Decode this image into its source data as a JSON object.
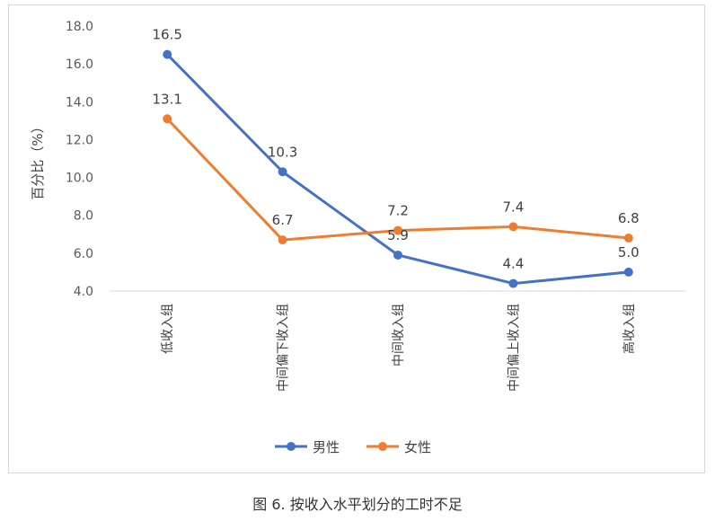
{
  "chart_data": {
    "type": "line",
    "ylabel": "百分比（%）",
    "ylim": [
      4.0,
      18.0
    ],
    "yticks": [
      "4.0",
      "6.0",
      "8.0",
      "10.0",
      "12.0",
      "14.0",
      "16.0",
      "18.0"
    ],
    "categories": [
      "低收入组",
      "中间偏下收入组",
      "中间收入组",
      "中间偏上收入组",
      "高收入组"
    ],
    "series": [
      {
        "name": "男性",
        "color": "#4472c4",
        "values": [
          16.5,
          10.3,
          5.9,
          4.4,
          5.0
        ],
        "labels": [
          "16.5",
          "10.3",
          "5.9",
          "4.4",
          "5.0"
        ]
      },
      {
        "name": "女性",
        "color": "#ed7d31",
        "values": [
          13.1,
          6.7,
          7.2,
          7.4,
          6.8
        ],
        "labels": [
          "13.1",
          "6.7",
          "7.2",
          "7.4",
          "6.8"
        ]
      }
    ],
    "grid": false,
    "legend": "bottom-center"
  },
  "caption": "图 6. 按收入水平划分的工时不足"
}
